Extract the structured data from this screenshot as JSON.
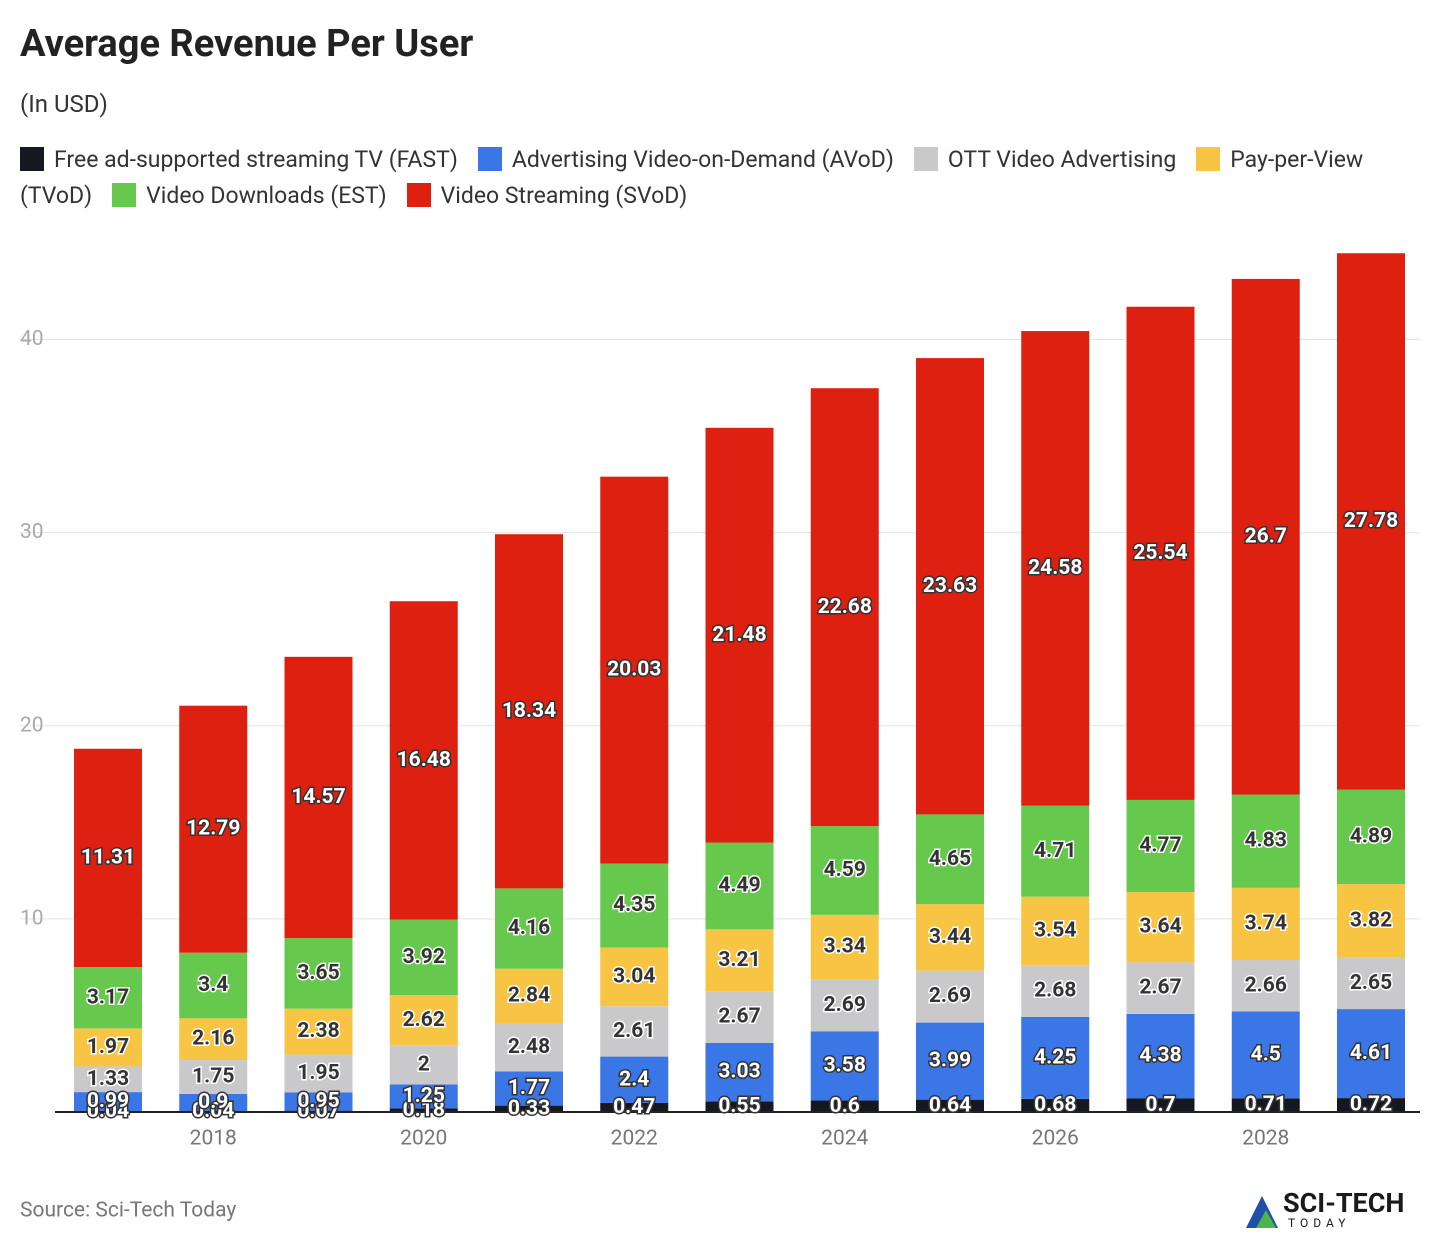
{
  "chart_data": {
    "type": "stacked_bar",
    "title": "Average Revenue Per User",
    "subtitle": "(In USD)",
    "categories": [
      null,
      "2018",
      null,
      "2020",
      null,
      "2022",
      null,
      "2024",
      null,
      "2026",
      null,
      "2028",
      null
    ],
    "series": [
      {
        "name": "Free ad-supported streaming TV (FAST)",
        "color": "#16181f",
        "values": [
          0.04,
          0.04,
          0.07,
          0.18,
          0.33,
          0.47,
          0.55,
          0.6,
          0.64,
          0.68,
          0.7,
          0.71,
          0.72
        ]
      },
      {
        "name": "Advertising Video-on-Demand (AVoD)",
        "color": "#3a76e6",
        "values": [
          0.99,
          0.9,
          0.95,
          1.25,
          1.77,
          2.4,
          3.03,
          3.58,
          3.99,
          4.25,
          4.38,
          4.5,
          4.61
        ]
      },
      {
        "name": "OTT Video Advertising",
        "color": "#c9c9cb",
        "values": [
          1.33,
          1.75,
          1.95,
          2,
          2.48,
          2.61,
          2.67,
          2.69,
          2.69,
          2.68,
          2.67,
          2.66,
          2.65
        ]
      },
      {
        "name": "Pay-per-View (TVoD)",
        "color": "#f8c444",
        "values": [
          1.97,
          2.16,
          2.38,
          2.62,
          2.84,
          3.04,
          3.21,
          3.34,
          3.44,
          3.54,
          3.64,
          3.74,
          3.82
        ]
      },
      {
        "name": "Video Downloads (EST)",
        "color": "#66c84c",
        "values": [
          3.17,
          3.4,
          3.65,
          3.92,
          4.16,
          4.35,
          4.49,
          4.59,
          4.65,
          4.71,
          4.77,
          4.83,
          4.89
        ]
      },
      {
        "name": "Video Streaming (SVoD)",
        "color": "#dd2010",
        "values": [
          11.31,
          12.79,
          14.57,
          16.48,
          18.34,
          20.03,
          21.48,
          22.68,
          23.63,
          24.58,
          25.54,
          26.7,
          27.78
        ]
      }
    ],
    "ylim": [
      0,
      45
    ],
    "yticks": [
      10,
      20,
      30,
      40
    ],
    "grid": true,
    "source": "Source: Sci-Tech Today"
  },
  "logo": {
    "name": "SCI-TECH",
    "tagline": "TODAY"
  }
}
